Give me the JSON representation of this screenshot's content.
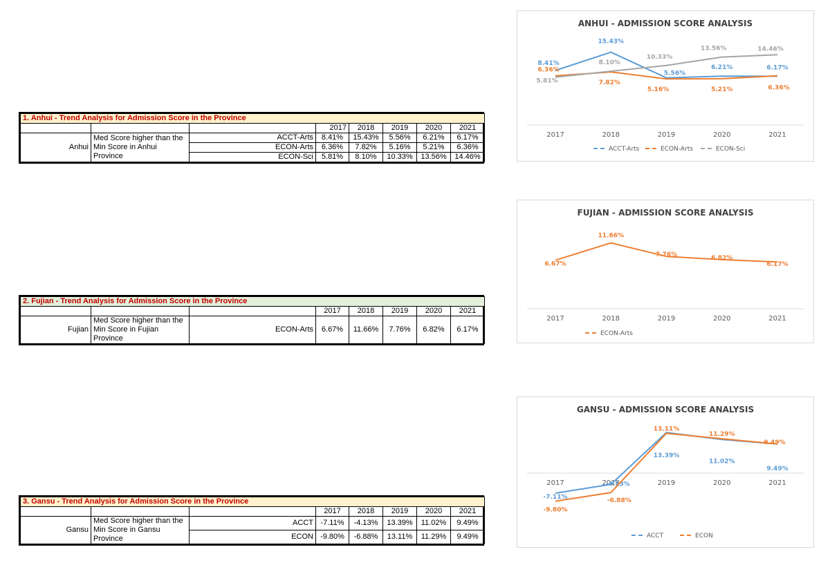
{
  "colors": {
    "acct": "#5b9bd5",
    "econ": "#ed7d31",
    "sci": "#a5a5a5",
    "title_red": "#c00000",
    "anhui_bg": "#fff2cc",
    "fujian_bg": "#e2efda",
    "gansu_bg": "#fff2cc"
  },
  "years": [
    "2017",
    "2018",
    "2019",
    "2020",
    "2021"
  ],
  "tables": [
    {
      "title": "1. Anhui - Trend Analysis for Admission Score in the Province",
      "province": "Anhui",
      "desc": "Med Score higher than the Min Score in Anhui Province",
      "rows": [
        {
          "label": "ACCT-Arts",
          "values": [
            "8.41%",
            "15.43%",
            "5.56%",
            "6.21%",
            "6.17%"
          ]
        },
        {
          "label": "ECON-Arts",
          "values": [
            "6.36%",
            "7.82%",
            "5.16%",
            "5.21%",
            "6.36%"
          ]
        },
        {
          "label": "ECON-Sci",
          "values": [
            "5.81%",
            "8.10%",
            "10.33%",
            "13.56%",
            "14.46%"
          ]
        }
      ]
    },
    {
      "title": "2. Fujian - Trend Analysis for Admission Score in the Province",
      "province": "Fujian",
      "desc": "Med Score higher than the Min Score in Fujian Province",
      "rows": [
        {
          "label": "ECON-Arts",
          "values": [
            "6.67%",
            "11.66%",
            "7.76%",
            "6.82%",
            "6.17%"
          ]
        }
      ]
    },
    {
      "title": "3. Gansu - Trend Analysis for Admission Score in the Province",
      "province": "Gansu",
      "desc": "Med Score higher than the Min Score in Gansu Province",
      "rows": [
        {
          "label": "ACCT",
          "values": [
            "-7.11%",
            "-4.13%",
            "13.39%",
            "11.02%",
            "9.49%"
          ]
        },
        {
          "label": "ECON",
          "values": [
            "-9.80%",
            "-6.88%",
            "13.11%",
            "11.29%",
            "9.49%"
          ]
        }
      ]
    }
  ],
  "chart_data": [
    {
      "type": "line",
      "title": "ANHUI - ADMISSION SCORE ANALYSIS",
      "categories": [
        "2017",
        "2018",
        "2019",
        "2020",
        "2021"
      ],
      "ylim": [
        -6,
        18
      ],
      "series": [
        {
          "name": "ACCT-Arts",
          "values": [
            8.41,
            15.43,
            5.56,
            6.21,
            6.17
          ],
          "labels": [
            "8.41%",
            "15.43%",
            "5.56%",
            "6.21%",
            "6.17%"
          ]
        },
        {
          "name": "ECON-Arts",
          "values": [
            6.36,
            7.82,
            5.16,
            5.21,
            6.36
          ],
          "labels": [
            "6.36%",
            "7.82%",
            "5.16%",
            "5.21%",
            "6.36%"
          ]
        },
        {
          "name": "ECON-Sci",
          "values": [
            5.81,
            8.1,
            10.33,
            13.56,
            14.46
          ],
          "labels": [
            "5.81%",
            "8.10%",
            "10.33%",
            "13.56%",
            "14.46%"
          ]
        }
      ],
      "legend": "bottom"
    },
    {
      "type": "line",
      "title": "FUJIAN - ADMISSION SCORE ANALYSIS",
      "categories": [
        "2017",
        "2018",
        "2019",
        "2020",
        "2021"
      ],
      "ylim": [
        -2,
        14
      ],
      "series": [
        {
          "name": "ECON-Arts",
          "values": [
            6.67,
            11.66,
            7.76,
            6.82,
            6.17
          ],
          "labels": [
            "6.67%",
            "11.66%",
            "7.76%",
            "6.82%",
            "6.17%"
          ]
        }
      ],
      "legend": "bottom-left"
    },
    {
      "type": "line",
      "title": "GANSU - ADMISSION SCORE ANALYSIS",
      "categories": [
        "2017",
        "2018",
        "2019",
        "2020",
        "2021"
      ],
      "ylim": [
        -12,
        16
      ],
      "series": [
        {
          "name": "ACCT",
          "values": [
            -7.11,
            -4.13,
            13.39,
            11.02,
            9.49
          ],
          "labels": [
            "-7.11%",
            "-4.13%",
            "13.39%",
            "11.02%",
            "9.49%"
          ]
        },
        {
          "name": "ECON",
          "values": [
            -9.8,
            -6.88,
            13.11,
            11.29,
            9.49
          ],
          "labels": [
            "-9.80%",
            "-6.88%",
            "13.11%",
            "11.29%",
            "9.49%"
          ]
        }
      ],
      "legend": "bottom"
    }
  ]
}
